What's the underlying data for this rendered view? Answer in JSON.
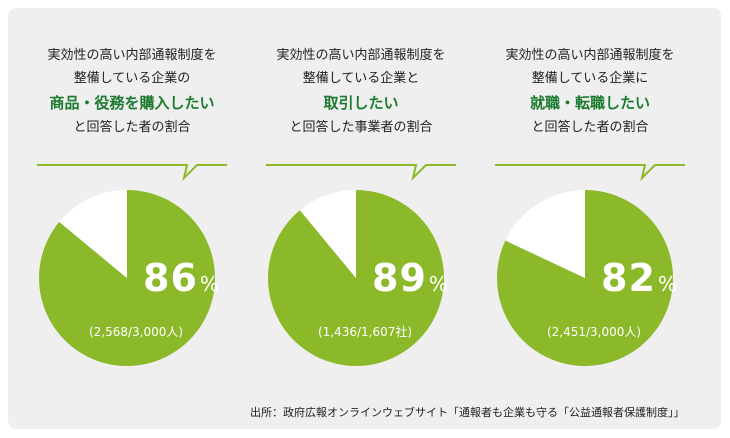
{
  "colors": {
    "filled": "#8cb92a",
    "remainder": "#ffffff",
    "highlight": "#1a7a2e",
    "background": "#efefef"
  },
  "chart_data": [
    {
      "type": "pie",
      "caption": [
        "実効性の高い内部通報制度を",
        "整備している企業の",
        "商品・役務を購入したい",
        "と回答した者の割合"
      ],
      "highlight_line": 2,
      "value": 86,
      "unit": "%",
      "slices": [
        {
          "label": "86%",
          "value": 86
        },
        {
          "label": "",
          "value": 14
        }
      ],
      "count_label": "(2,568/3,000人)"
    },
    {
      "type": "pie",
      "caption": [
        "実効性の高い内部通報制度を",
        "整備している企業と",
        "取引したい",
        "と回答した事業者の割合"
      ],
      "highlight_line": 2,
      "value": 89,
      "unit": "%",
      "slices": [
        {
          "label": "89%",
          "value": 89
        },
        {
          "label": "",
          "value": 11
        }
      ],
      "count_label": "(1,436/1,607社)"
    },
    {
      "type": "pie",
      "caption": [
        "実効性の高い内部通報制度を",
        "整備している企業に",
        "就職・転職したい",
        "と回答した者の割合"
      ],
      "highlight_line": 2,
      "value": 82,
      "unit": "%",
      "slices": [
        {
          "label": "82%",
          "value": 82
        },
        {
          "label": "",
          "value": 18
        }
      ],
      "count_label": "(2,451/3,000人)"
    }
  ],
  "source": "出所：政府広報オンラインウェブサイト「通報者も企業も守る「公益通報者保護制度」」"
}
